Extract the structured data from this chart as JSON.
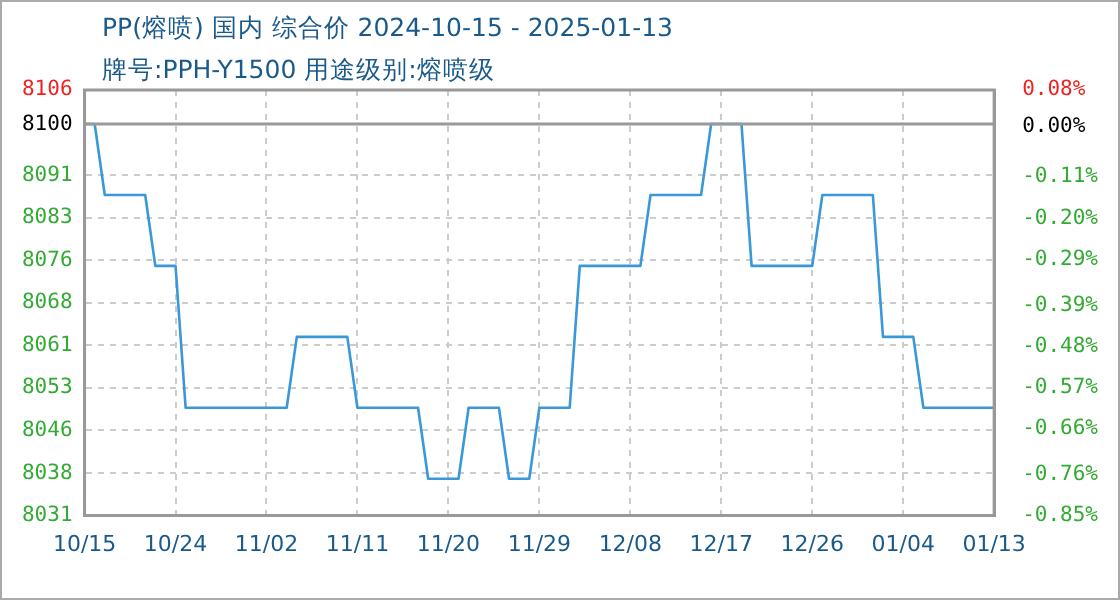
{
  "chart_data": {
    "type": "line",
    "title": "PP(熔喷) 国内 综合价 2024-10-15 - 2025-01-13",
    "subtitle": "牌号:PPH-Y1500 用途级别:熔喷级",
    "x": [
      "2024-10-15",
      "2024-10-16",
      "2024-10-17",
      "2024-10-21",
      "2024-10-22",
      "2024-10-24",
      "2024-10-25",
      "2024-11-04",
      "2024-11-05",
      "2024-11-10",
      "2024-11-11",
      "2024-11-17",
      "2024-11-18",
      "2024-11-21",
      "2024-11-22",
      "2024-11-25",
      "2024-11-26",
      "2024-11-28",
      "2024-11-29",
      "2024-12-02",
      "2024-12-03",
      "2024-12-09",
      "2024-12-10",
      "2024-12-15",
      "2024-12-16",
      "2024-12-19",
      "2024-12-20",
      "2024-12-26",
      "2024-12-27",
      "2025-01-01",
      "2025-01-02",
      "2025-01-05",
      "2025-01-06",
      "2025-01-13"
    ],
    "series": [
      {
        "color": "#3a98d8",
        "values": [
          8100,
          8100,
          8087.5,
          8087.5,
          8075,
          8075,
          8050,
          8050,
          8062.5,
          8062.5,
          8050,
          8050,
          8037.5,
          8037.5,
          8050,
          8050,
          8037.5,
          8037.5,
          8050,
          8050,
          8075,
          8075,
          8087.5,
          8087.5,
          8100,
          8100,
          8075,
          8075,
          8087.5,
          8087.5,
          8062.5,
          8062.5,
          8050,
          8050
        ]
      }
    ],
    "xlim": [
      "2024-10-15",
      "2025-01-13"
    ],
    "xticks": [
      {
        "value": "2024-10-15",
        "label": "10/15"
      },
      {
        "value": "2024-10-24",
        "label": "10/24"
      },
      {
        "value": "2024-11-02",
        "label": "11/02"
      },
      {
        "value": "2024-11-11",
        "label": "11/11"
      },
      {
        "value": "2024-11-20",
        "label": "11/20"
      },
      {
        "value": "2024-11-29",
        "label": "11/29"
      },
      {
        "value": "2024-12-08",
        "label": "12/08"
      },
      {
        "value": "2024-12-17",
        "label": "12/17"
      },
      {
        "value": "2024-12-26",
        "label": "12/26"
      },
      {
        "value": "2025-01-04",
        "label": "01/04"
      },
      {
        "value": "2025-01-13",
        "label": "01/13"
      }
    ],
    "ylim": [
      8031,
      8106
    ],
    "yticks": [
      8106,
      8100,
      8091,
      {
        "value": 8083.5,
        "label": "8083"
      },
      8076,
      {
        "value": 8068.5,
        "label": "8068"
      },
      8061,
      {
        "value": 8053.5,
        "label": "8053"
      },
      8046,
      {
        "value": 8038.5,
        "label": "8038"
      },
      8031
    ],
    "y2lim": [
      -0.85,
      0.08
    ],
    "y2ticks": [
      {
        "value": 0.08,
        "label": "0.08%"
      },
      {
        "value": 0,
        "label": "0.00%"
      },
      {
        "value": -0.11,
        "label": "-0.11%"
      },
      {
        "value": -0.2,
        "label": "-0.20%"
      },
      {
        "value": -0.29,
        "label": "-0.29%"
      },
      {
        "value": -0.39,
        "label": "-0.39%"
      },
      {
        "value": -0.48,
        "label": "-0.48%"
      },
      {
        "value": -0.57,
        "label": "-0.57%"
      },
      {
        "value": -0.66,
        "label": "-0.66%"
      },
      {
        "value": -0.76,
        "label": "-0.76%"
      },
      {
        "value": -0.85,
        "label": "-0.85%"
      }
    ],
    "ref_lines": [
      {
        "axis": "y",
        "value": 8100,
        "color": "#999999"
      }
    ],
    "grid": true,
    "legend": false,
    "marker": "none",
    "line_style": "solid"
  }
}
